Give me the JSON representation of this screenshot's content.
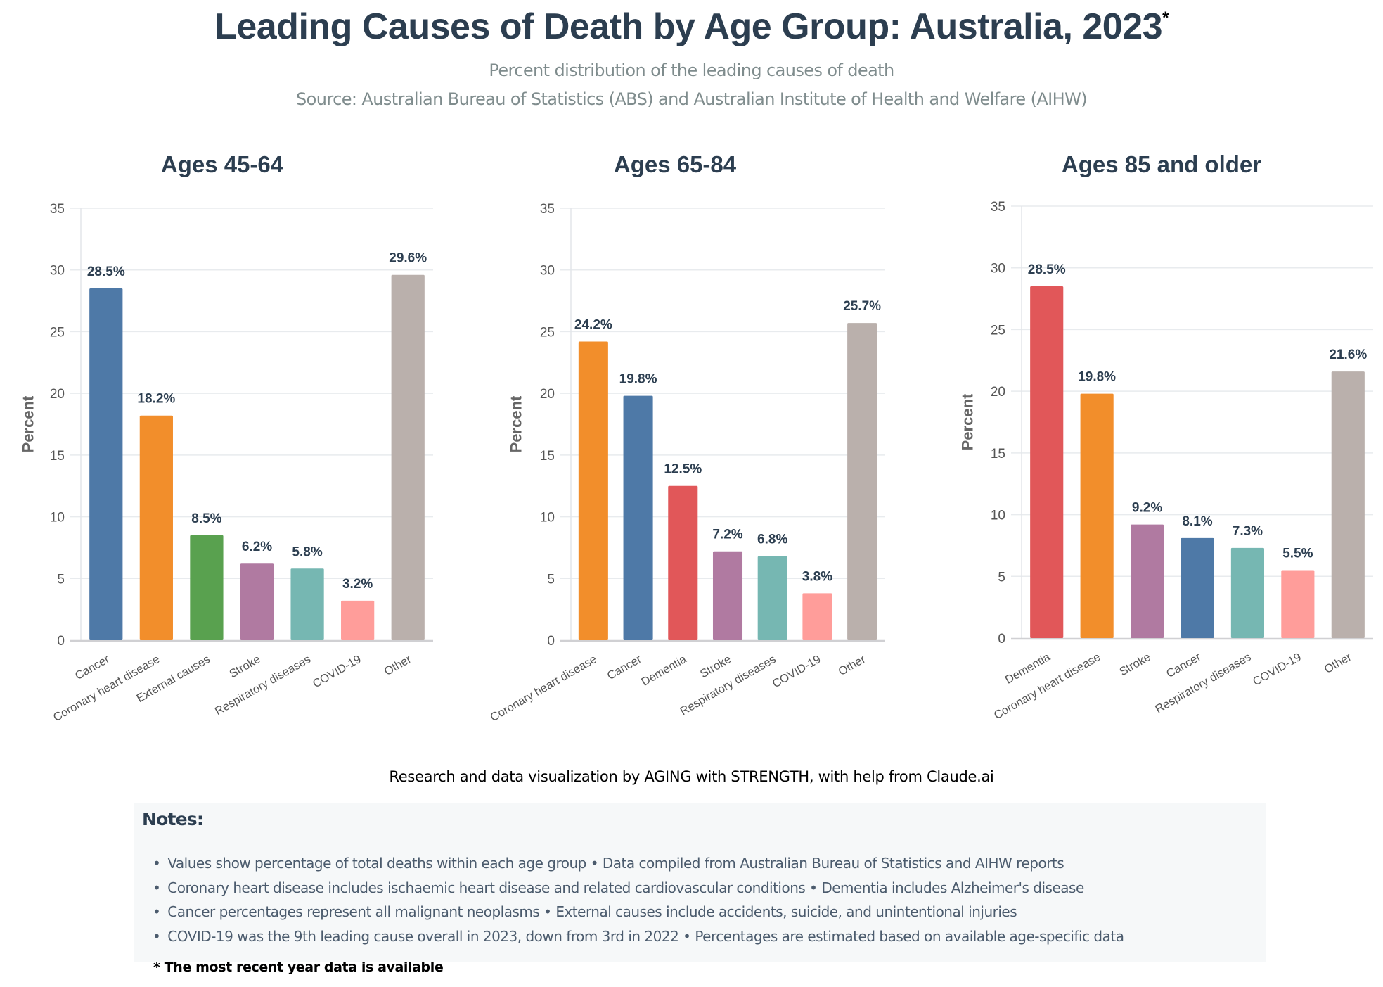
{
  "header": {
    "title": "Leading Causes of Death by Age Group: Australia, 2023",
    "title_mark": "*",
    "subtitle": "Percent distribution of the leading causes of death",
    "source": "Source: Australian Bureau of Statistics (ABS) and Australian Institute of Health and Welfare (AIHW)"
  },
  "chart_data": [
    {
      "type": "bar",
      "title": "Ages 45-64",
      "ylabel": "Percent",
      "xlabel": "",
      "ylim": [
        0,
        35
      ],
      "yticks": [
        0,
        5,
        10,
        15,
        20,
        25,
        30,
        35
      ],
      "grid": true,
      "categories": [
        "Cancer",
        "Coronary heart disease",
        "External causes",
        "Stroke",
        "Respiratory diseases",
        "COVID-19",
        "Other"
      ],
      "values": [
        28.5,
        18.2,
        8.5,
        6.2,
        5.8,
        3.2,
        29.6
      ],
      "labels": [
        "28.5%",
        "18.2%",
        "8.5%",
        "6.2%",
        "5.8%",
        "3.2%",
        "29.6%"
      ],
      "colors": [
        "#4e79a7",
        "#f28e2b",
        "#59a14f",
        "#b07aa1",
        "#76b7b2",
        "#ff9d9a",
        "#bab0ac"
      ]
    },
    {
      "type": "bar",
      "title": "Ages 65-84",
      "ylabel": "Percent",
      "xlabel": "",
      "ylim": [
        0,
        35
      ],
      "yticks": [
        0,
        5,
        10,
        15,
        20,
        25,
        30,
        35
      ],
      "grid": true,
      "categories": [
        "Coronary heart disease",
        "Cancer",
        "Dementia",
        "Stroke",
        "Respiratory diseases",
        "COVID-19",
        "Other"
      ],
      "values": [
        24.2,
        19.8,
        12.5,
        7.2,
        6.8,
        3.8,
        25.7
      ],
      "labels": [
        "24.2%",
        "19.8%",
        "12.5%",
        "7.2%",
        "6.8%",
        "3.8%",
        "25.7%"
      ],
      "colors": [
        "#f28e2b",
        "#4e79a7",
        "#e15759",
        "#b07aa1",
        "#76b7b2",
        "#ff9d9a",
        "#bab0ac"
      ]
    },
    {
      "type": "bar",
      "title": "Ages 85 and older",
      "ylabel": "Percent",
      "xlabel": "",
      "ylim": [
        0,
        35
      ],
      "yticks": [
        0,
        5,
        10,
        15,
        20,
        25,
        30,
        35
      ],
      "grid": true,
      "categories": [
        "Dementia",
        "Coronary heart disease",
        "Stroke",
        "Cancer",
        "Respiratory diseases",
        "COVID-19",
        "Other"
      ],
      "values": [
        28.5,
        19.8,
        9.2,
        8.1,
        7.3,
        5.5,
        21.6
      ],
      "labels": [
        "28.5%",
        "19.8%",
        "9.2%",
        "8.1%",
        "7.3%",
        "5.5%",
        "21.6%"
      ],
      "colors": [
        "#e15759",
        "#f28e2b",
        "#b07aa1",
        "#4e79a7",
        "#76b7b2",
        "#ff9d9a",
        "#bab0ac"
      ]
    }
  ],
  "attribution": "Research and data visualization by AGING with STRENGTH, with help from Claude.ai",
  "notes": {
    "heading": "Notes:",
    "items": [
      "Values show percentage of total deaths within each age group • Data compiled from Australian Bureau of Statistics and AIHW reports",
      "Coronary heart disease includes ischaemic heart disease and related cardiovascular conditions • Dementia includes Alzheimer's disease",
      "Cancer percentages represent all malignant neoplasms • External causes include accidents, suicide, and unintentional injuries",
      "COVID-19 was the 9th leading cause overall in 2023, down from 3rd in 2022 • Percentages are estimated based on available age-specific data"
    ]
  },
  "footnote": "* The most recent year data is available"
}
